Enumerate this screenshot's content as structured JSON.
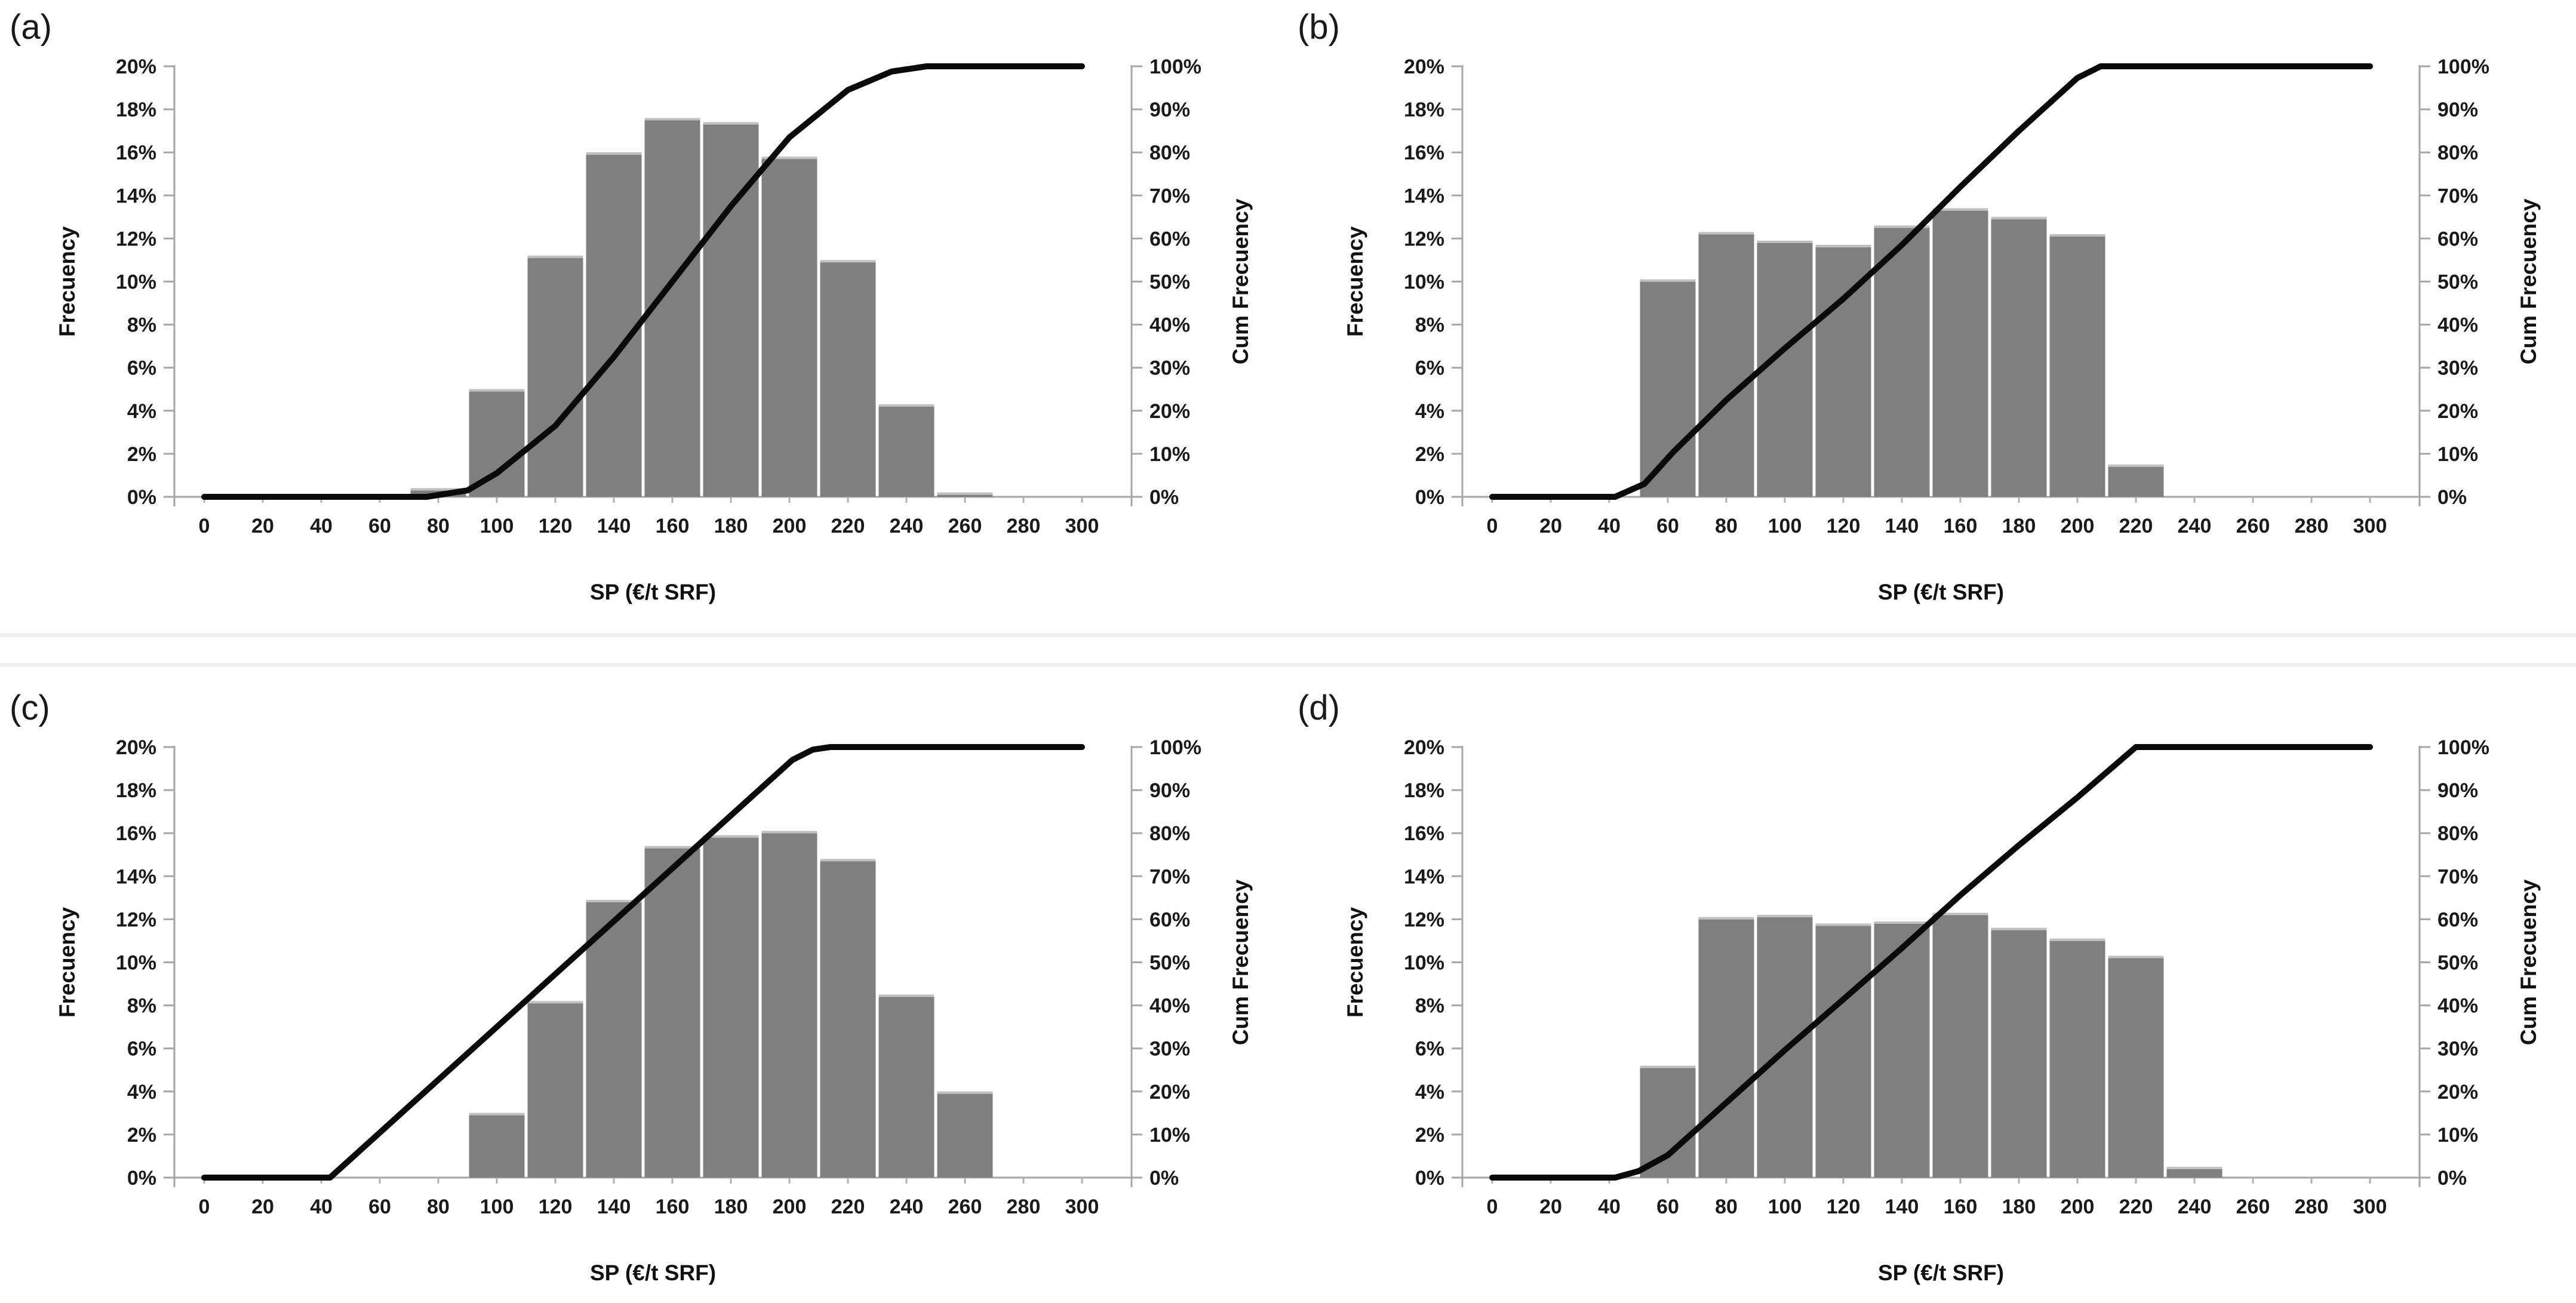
{
  "figure": {
    "background_color": "#ffffff",
    "seam_color": "#f0f0f0",
    "bar_color": "#7f7f7f",
    "bar_cap_color": "#c1c1c1",
    "line_color": "#0a0a0a",
    "axis_color": "#a6a6a6",
    "text_color": "#1a1a1a"
  },
  "axes": {
    "x_tick_labels": [
      "0",
      "20",
      "40",
      "60",
      "80",
      "100",
      "120",
      "140",
      "160",
      "180",
      "200",
      "220",
      "240",
      "260",
      "280",
      "300"
    ],
    "left_tick_labels": [
      "0%",
      "2%",
      "4%",
      "6%",
      "8%",
      "10%",
      "12%",
      "14%",
      "16%",
      "18%",
      "20%"
    ],
    "right_tick_labels": [
      "0%",
      "10%",
      "20%",
      "30%",
      "40%",
      "50%",
      "60%",
      "70%",
      "80%",
      "90%",
      "100%"
    ]
  },
  "chart_data": [
    {
      "id": "a",
      "panel_label": "(a)",
      "type": "bar+line",
      "xlabel": "SP (€/t SRF)",
      "ylabel_left": "Frecuency",
      "ylabel_right": "Cum Frecuency",
      "xlim": [
        0,
        300
      ],
      "x_tick_step": 20,
      "ylim_left_pct": [
        0,
        20
      ],
      "ylim_right_pct": [
        0,
        100
      ],
      "bin_width": 20,
      "grid": false,
      "legend": "none",
      "bars": {
        "centers": [
          80,
          100,
          120,
          140,
          160,
          180,
          200,
          220,
          240,
          260
        ],
        "frequencies_pct": [
          0.4,
          5.0,
          11.2,
          16.0,
          17.6,
          17.4,
          15.8,
          11.0,
          4.3,
          0.2
        ]
      },
      "cumulative_line_points": [
        [
          0,
          0
        ],
        [
          76,
          0
        ],
        [
          90,
          1.5
        ],
        [
          100,
          5.5
        ],
        [
          120,
          16.5
        ],
        [
          140,
          32.5
        ],
        [
          160,
          50
        ],
        [
          180,
          67.5
        ],
        [
          200,
          83.5
        ],
        [
          220,
          94.5
        ],
        [
          235,
          98.8
        ],
        [
          247,
          100
        ],
        [
          300,
          100
        ]
      ]
    },
    {
      "id": "b",
      "panel_label": "(b)",
      "type": "bar+line",
      "xlabel": "SP (€/t SRF)",
      "ylabel_left": "Frecuency",
      "ylabel_right": "Cum Frecuency",
      "xlim": [
        0,
        300
      ],
      "x_tick_step": 20,
      "ylim_left_pct": [
        0,
        20
      ],
      "ylim_right_pct": [
        0,
        100
      ],
      "bin_width": 20,
      "grid": false,
      "legend": "none",
      "bars": {
        "centers": [
          60,
          80,
          100,
          120,
          140,
          160,
          180,
          200,
          220
        ],
        "frequencies_pct": [
          10.1,
          12.3,
          11.9,
          11.7,
          12.6,
          13.4,
          13.0,
          12.2,
          1.5
        ]
      },
      "cumulative_line_points": [
        [
          0,
          0
        ],
        [
          42,
          0
        ],
        [
          52,
          3
        ],
        [
          62,
          10.5
        ],
        [
          80,
          22.5
        ],
        [
          100,
          34.5
        ],
        [
          120,
          46
        ],
        [
          140,
          58.5
        ],
        [
          160,
          72
        ],
        [
          180,
          85
        ],
        [
          200,
          97.3
        ],
        [
          208,
          100
        ],
        [
          300,
          100
        ]
      ]
    },
    {
      "id": "c",
      "panel_label": "(c)",
      "type": "bar+line",
      "xlabel": "SP (€/t SRF)",
      "ylabel_left": "Frecuency",
      "ylabel_right": "Cum Frecuency",
      "xlim": [
        0,
        300
      ],
      "x_tick_step": 20,
      "ylim_left_pct": [
        0,
        20
      ],
      "ylim_right_pct": [
        0,
        100
      ],
      "bin_width": 20,
      "grid": false,
      "legend": "none",
      "bars": {
        "centers": [
          100,
          120,
          140,
          160,
          180,
          200,
          220,
          240,
          260
        ],
        "frequencies_pct": [
          3.0,
          8.2,
          12.9,
          15.4,
          15.9,
          16.1,
          14.8,
          8.5,
          4.0
        ]
      },
      "cumulative_line_points": [
        [
          0,
          0
        ],
        [
          43,
          0
        ],
        [
          201,
          97
        ],
        [
          208,
          99.4
        ],
        [
          214,
          100
        ],
        [
          300,
          100
        ]
      ]
    },
    {
      "id": "d",
      "panel_label": "(d)",
      "type": "bar+line",
      "xlabel": "SP (€/t SRF)",
      "ylabel_left": "Frecuency",
      "ylabel_right": "Cum Frecuency",
      "xlim": [
        0,
        300
      ],
      "x_tick_step": 20,
      "ylim_left_pct": [
        0,
        20
      ],
      "ylim_right_pct": [
        0,
        100
      ],
      "bin_width": 20,
      "grid": false,
      "legend": "none",
      "bars": {
        "centers": [
          60,
          80,
          100,
          120,
          140,
          160,
          180,
          200,
          220,
          240
        ],
        "frequencies_pct": [
          5.2,
          12.1,
          12.2,
          11.8,
          11.9,
          12.3,
          11.6,
          11.1,
          10.3,
          0.5
        ]
      },
      "cumulative_line_points": [
        [
          0,
          0
        ],
        [
          42,
          0
        ],
        [
          50,
          1.5
        ],
        [
          60,
          5.2
        ],
        [
          80,
          17.4
        ],
        [
          100,
          29.6
        ],
        [
          120,
          41.4
        ],
        [
          140,
          53.3
        ],
        [
          160,
          65.6
        ],
        [
          180,
          77.2
        ],
        [
          200,
          88.3
        ],
        [
          220,
          100
        ],
        [
          300,
          100
        ]
      ]
    }
  ]
}
